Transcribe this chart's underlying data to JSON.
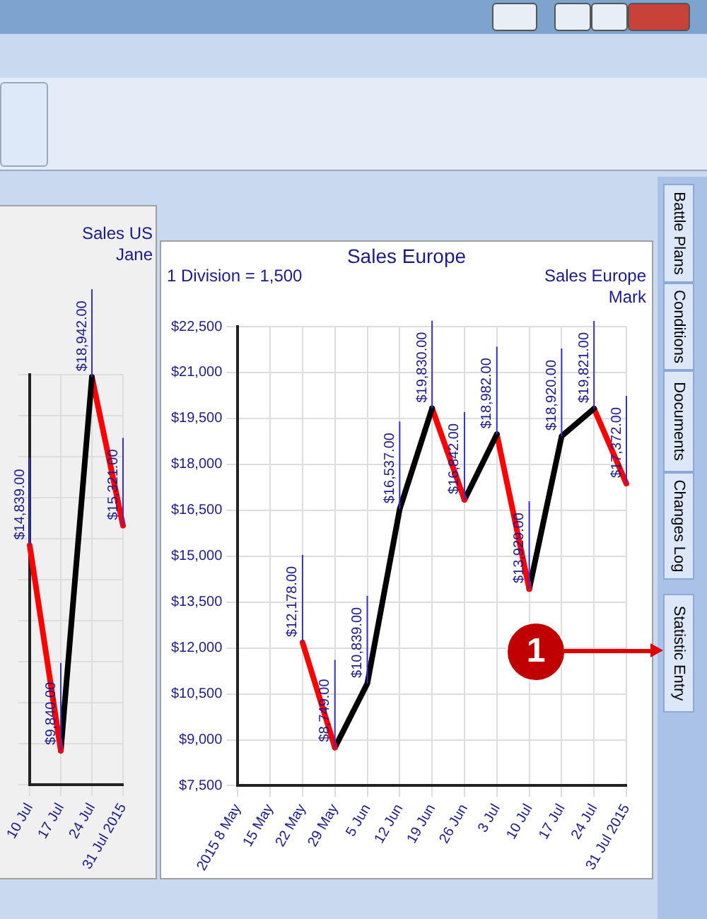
{
  "chart_data": [
    {
      "type": "line",
      "annotations": [
        "Sales US\nJane"
      ],
      "categories": [
        "10 Jul",
        "17 Jul",
        "24 Jul",
        "31 Jul 2015"
      ],
      "tick_labels": "x",
      "grid": true,
      "legend": false,
      "marker": "none",
      "line_style": "solid",
      "series": [
        {
          "color": "#ff0000",
          "x": [
            "10 Jul",
            "17 Jul"
          ],
          "values": [
            14839,
            9840
          ],
          "value_labels": [
            "$14,839.00",
            null
          ]
        },
        {
          "color": "#000000",
          "x": [
            "17 Jul",
            "24 Jul"
          ],
          "values": [
            9840,
            18942
          ],
          "value_labels": [
            "$9,840.00",
            null
          ]
        },
        {
          "color": "#ff0000",
          "x": [
            "24 Jul",
            "31 Jul 2015"
          ],
          "values": [
            18942,
            15321
          ],
          "value_labels": [
            "$18,942.00",
            "$15,321.00"
          ]
        }
      ]
    },
    {
      "type": "line",
      "title": "Sales Europe",
      "annotations": [
        "1 Division = 1,500",
        "Sales Europe\nMark",
        "Battle Plans",
        "Conditions",
        "Documents",
        "Changes Log",
        "Statistic Entry",
        "1"
      ],
      "categories": [
        "2015 8 May",
        "15 May",
        "22 May",
        "29 May",
        "5 Jun",
        "12 Jun",
        "19 Jun",
        "26 Jun",
        "3 Jul",
        "10 Jul",
        "17 Jul",
        "24 Jul",
        "31 Jul 2015"
      ],
      "ylim": [
        7500,
        22500
      ],
      "yticks": [
        {
          "value": 7500,
          "label": "$7,500"
        },
        {
          "value": 9000,
          "label": "$9,000"
        },
        {
          "value": 10500,
          "label": "$10,500"
        },
        {
          "value": 12000,
          "label": "$12,000"
        },
        {
          "value": 13500,
          "label": "$13,500"
        },
        {
          "value": 15000,
          "label": "$15,000"
        },
        {
          "value": 16500,
          "label": "$16,500"
        },
        {
          "value": 18000,
          "label": "$18,000"
        },
        {
          "value": 19500,
          "label": "$19,500"
        },
        {
          "value": 21000,
          "label": "$21,000"
        },
        {
          "value": 22500,
          "label": "$22,500"
        }
      ],
      "grid": true,
      "legend": false,
      "marker": "none",
      "line_style": "solid",
      "series": [
        {
          "color": "#ff0000",
          "x": [
            "22 May",
            "29 May"
          ],
          "values": [
            12178,
            8749
          ],
          "value_labels": [
            "$12,178.00",
            null
          ]
        },
        {
          "color": "#000000",
          "x": [
            "29 May",
            "5 Jun",
            "12 Jun",
            "19 Jun"
          ],
          "values": [
            8749,
            10839,
            16537,
            19830
          ],
          "value_labels": [
            "$8,749.00",
            "$10,839.00",
            "$16,537.00",
            null
          ]
        },
        {
          "color": "#ff0000",
          "x": [
            "19 Jun",
            "26 Jun"
          ],
          "values": [
            19830,
            16842
          ],
          "value_labels": [
            "$19,830.00",
            null
          ]
        },
        {
          "color": "#000000",
          "x": [
            "26 Jun",
            "3 Jul"
          ],
          "values": [
            16842,
            18982
          ],
          "value_labels": [
            "$16,842.00",
            null
          ]
        },
        {
          "color": "#ff0000",
          "x": [
            "3 Jul",
            "10 Jul"
          ],
          "values": [
            18982,
            13929
          ],
          "value_labels": [
            "$18,982.00",
            null
          ]
        },
        {
          "color": "#000000",
          "x": [
            "10 Jul",
            "17 Jul",
            "24 Jul"
          ],
          "values": [
            13929,
            18920,
            19821
          ],
          "value_labels": [
            "$13,929.00",
            "$18,920.00",
            null
          ]
        },
        {
          "color": "#ff0000",
          "x": [
            "24 Jul",
            "31 Jul 2015"
          ],
          "values": [
            19821,
            17372
          ],
          "value_labels": [
            "$19,821.00",
            "$17,372.00"
          ]
        }
      ]
    }
  ]
}
